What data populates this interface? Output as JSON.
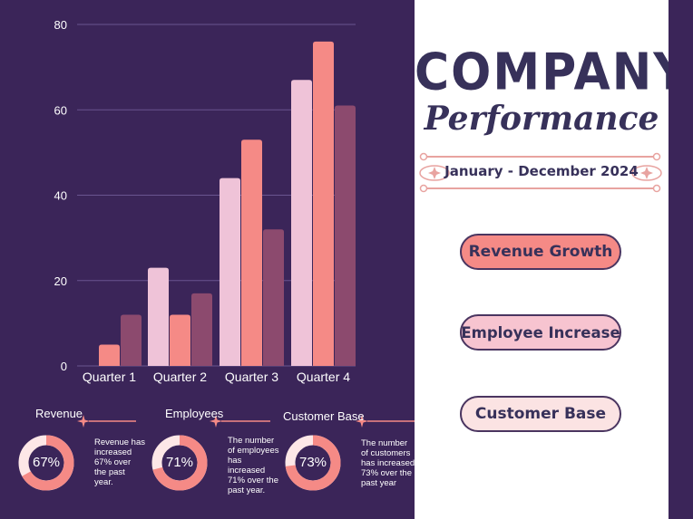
{
  "chart_data": {
    "type": "bar",
    "categories": [
      "Quarter 1",
      "Quarter 2",
      "Quarter 3",
      "Quarter 4"
    ],
    "series": [
      {
        "values": [
          0,
          23,
          44,
          67
        ],
        "color": "#efc3d8"
      },
      {
        "values": [
          5,
          12,
          53,
          76
        ],
        "color": "#f58a86"
      },
      {
        "values": [
          12,
          17,
          32,
          61
        ],
        "color": "#8c4a6e"
      }
    ],
    "ylim": [
      0,
      80
    ],
    "yticks": [
      0,
      20,
      40,
      60,
      80
    ],
    "grid": true
  },
  "header": {
    "title": "COMPANY",
    "subtitle": "Performance",
    "date_range": "January - December 2024"
  },
  "buttons": {
    "revenue": "Revenue Growth",
    "employee": "Employee Increase",
    "customer": "Customer Base"
  },
  "kpis": [
    {
      "title": "Revenue",
      "value": 67,
      "label": "67%",
      "desc": [
        "Revenue has",
        "increased",
        "67% over",
        "the past",
        "year."
      ]
    },
    {
      "title": "Employees",
      "value": 71,
      "label": "71%",
      "desc": [
        "The number",
        "of employees",
        "has",
        "increased",
        "71% over the",
        "past year."
      ]
    },
    {
      "title": "Customer Base",
      "value": 73,
      "label": "73%",
      "desc": [
        "The number",
        "of customers",
        "has increased",
        "73% over the",
        "past year"
      ]
    }
  ],
  "colors": {
    "background": "#3b2559",
    "panel": "#ffffff",
    "accent": "#f58a86",
    "text_dark": "#37315a"
  }
}
